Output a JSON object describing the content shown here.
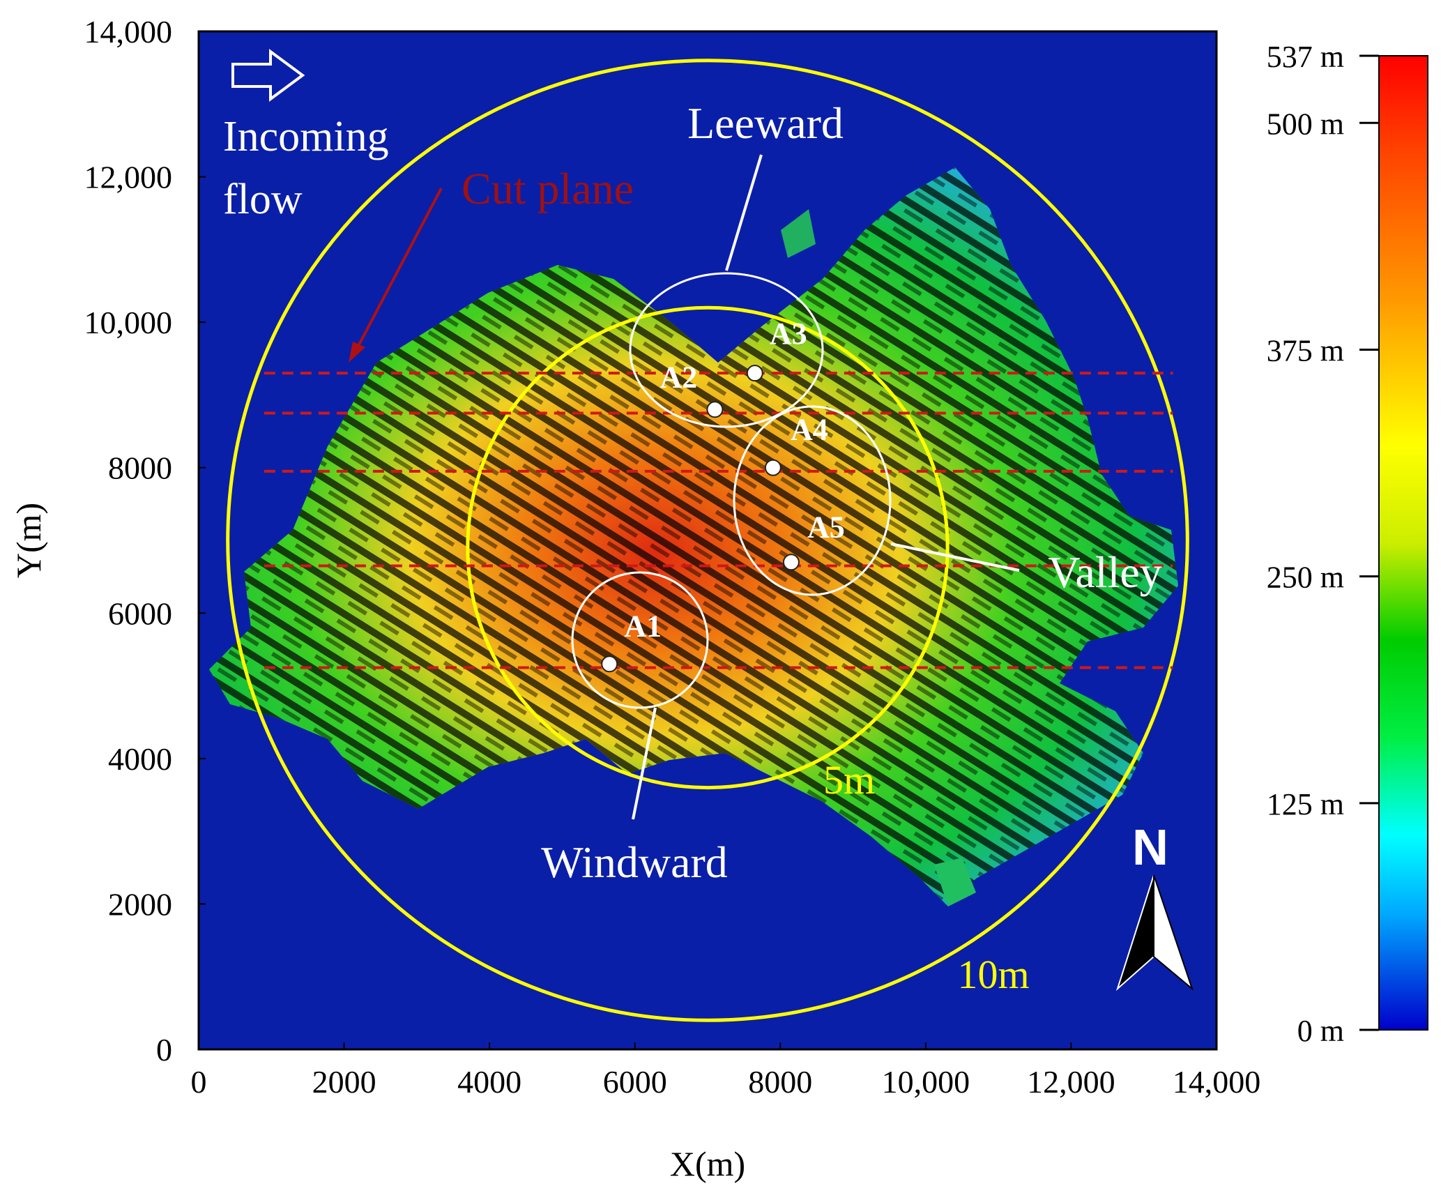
{
  "axes": {
    "xlabel": "X(m)",
    "ylabel": "Y(m)",
    "xlim": [
      0,
      14000
    ],
    "ylim": [
      0,
      14000
    ],
    "x_ticks": [
      "0",
      "2000",
      "4000",
      "6000",
      "8000",
      "10,000",
      "12,000",
      "14,000"
    ],
    "y_ticks": [
      "0",
      "2000",
      "4000",
      "6000",
      "8000",
      "10,000",
      "12,000",
      "14,000"
    ]
  },
  "colorbar": {
    "ticks": [
      "0 m",
      "125 m",
      "250 m",
      "375 m",
      "500 m",
      "537 m"
    ],
    "values": [
      0,
      125,
      250,
      375,
      500,
      537
    ],
    "min": 0,
    "max": 537,
    "colors": [
      "#0000cc",
      "#00ffff",
      "#00cc00",
      "#ffff00",
      "#ff8800",
      "#ff0000"
    ]
  },
  "annotations": {
    "incoming_flow": [
      "Incoming",
      "flow"
    ],
    "cut_plane": "Cut plane",
    "leeward": "Leeward",
    "windward": "Windward",
    "valley": "Valley",
    "inner_ring": "5m",
    "outer_ring": "10m",
    "north": "N"
  },
  "points": [
    {
      "label": "A1",
      "x": 5650,
      "y": 5300
    },
    {
      "label": "A2",
      "x": 7100,
      "y": 8800
    },
    {
      "label": "A3",
      "x": 7650,
      "y": 9300
    },
    {
      "label": "A4",
      "x": 7900,
      "y": 8000
    },
    {
      "label": "A5",
      "x": 8150,
      "y": 6700
    }
  ],
  "cut_planes_y": [
    9300,
    8750,
    7950,
    6650,
    5250
  ],
  "colors": {
    "sea": "#0a1fa8",
    "ring": "#ffff00",
    "cut_line": "#d01818",
    "cut_text": "#a01010"
  }
}
